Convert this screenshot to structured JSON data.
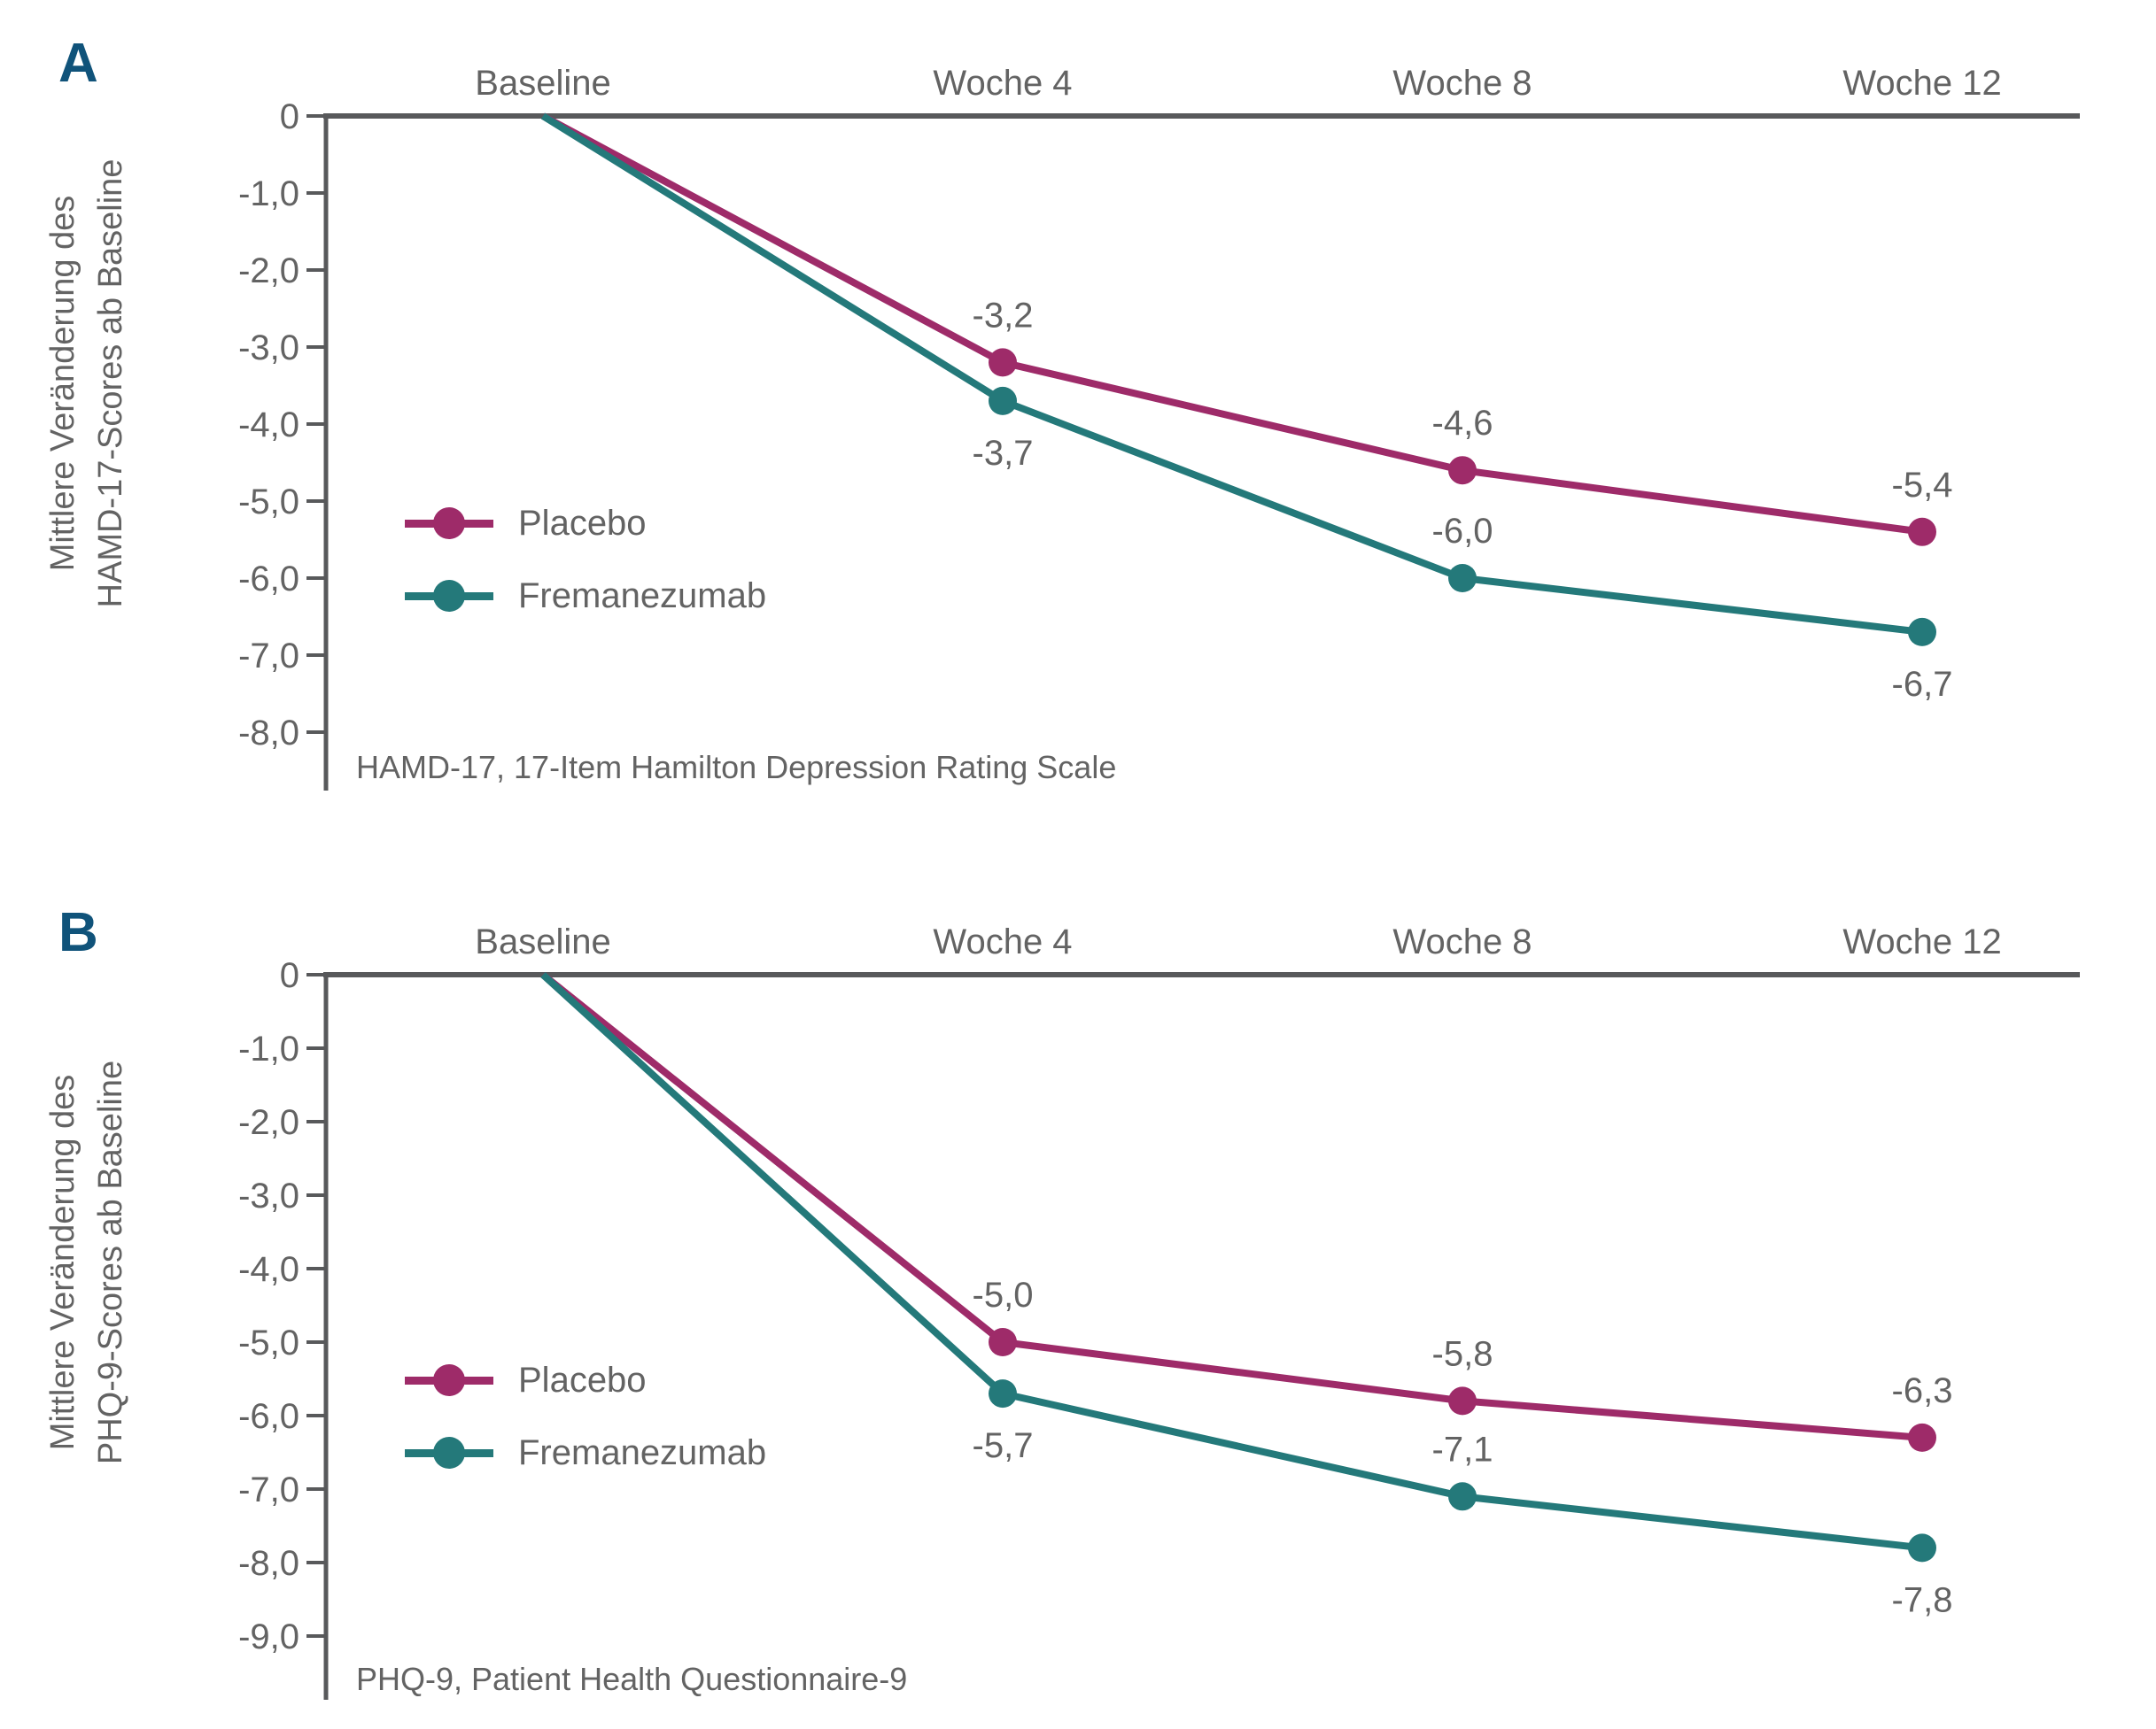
{
  "figure": {
    "background": "#ffffff"
  },
  "colors": {
    "placebo": "#9e2b69",
    "fremanezumab": "#24797a",
    "axis": "#58595b",
    "text": "#636363",
    "panel_letter": "#10537a"
  },
  "chart_data": [
    {
      "type": "line",
      "panel_label": "A",
      "categories": [
        "Baseline",
        "Woche 4",
        "Woche 8",
        "Woche 12"
      ],
      "series": [
        {
          "name": "Placebo",
          "color_key": "placebo",
          "values": [
            0,
            -3.2,
            -4.6,
            -5.4
          ],
          "point_labels": [
            "",
            "-3,2",
            "-4,6",
            "-5,4"
          ],
          "label_positions": [
            "",
            "above",
            "above",
            "above"
          ]
        },
        {
          "name": "Fremanezumab",
          "color_key": "fremanezumab",
          "values": [
            0,
            -3.7,
            -6.0,
            -6.7
          ],
          "point_labels": [
            "",
            "-3,7",
            "-6,0",
            "-6,7"
          ],
          "label_positions": [
            "",
            "below",
            "above",
            "below"
          ]
        }
      ],
      "ylabel_lines": [
        "Mittlere Veränderung des",
        "HAMD-17-Scores ab Baseline"
      ],
      "ylim": [
        -8,
        0
      ],
      "ytick_labels": [
        "0",
        "-1,0",
        "-2,0",
        "-3,0",
        "-4,0",
        "-5,0",
        "-6,0",
        "-7,0",
        "-8,0"
      ],
      "legend_position": "left-middle",
      "legend_entries": [
        "Placebo",
        "Fremanezumab"
      ],
      "grid": false,
      "footnote": "HAMD-17, 17-Item Hamilton Depression Rating Scale"
    },
    {
      "type": "line",
      "panel_label": "B",
      "categories": [
        "Baseline",
        "Woche 4",
        "Woche 8",
        "Woche 12"
      ],
      "series": [
        {
          "name": "Placebo",
          "color_key": "placebo",
          "values": [
            0,
            -5.0,
            -5.8,
            -6.3
          ],
          "point_labels": [
            "",
            "-5,0",
            "-5,8",
            "-6,3"
          ],
          "label_positions": [
            "",
            "above",
            "above",
            "above"
          ]
        },
        {
          "name": "Fremanezumab",
          "color_key": "fremanezumab",
          "values": [
            0,
            -5.7,
            -7.1,
            -7.8
          ],
          "point_labels": [
            "",
            "-5,7",
            "-7,1",
            "-7,8"
          ],
          "label_positions": [
            "",
            "below",
            "above",
            "below"
          ]
        }
      ],
      "ylabel_lines": [
        "Mittlere Veränderung des",
        "PHQ-9-Scores ab Baseline"
      ],
      "ylim": [
        -9,
        0
      ],
      "ytick_labels": [
        "0",
        "-1,0",
        "-2,0",
        "-3,0",
        "-4,0",
        "-5,0",
        "-6,0",
        "-7,0",
        "-8,0",
        "-9,0"
      ],
      "legend_position": "left-middle",
      "legend_entries": [
        "Placebo",
        "Fremanezumab"
      ],
      "grid": false,
      "footnote": "PHQ-9, Patient Health Questionnaire-9"
    }
  ]
}
